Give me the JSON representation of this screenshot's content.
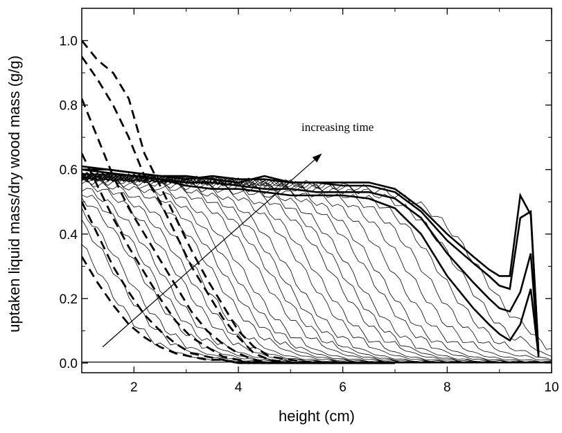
{
  "chart_data": {
    "type": "line",
    "title": "",
    "xlabel": "height (cm)",
    "ylabel": "uptaken liquid mass/dry wood mass (g/g)",
    "xlim": [
      1,
      10
    ],
    "ylim": [
      -0.03,
      1.1
    ],
    "xticks": [
      2,
      4,
      6,
      8,
      10
    ],
    "yticks": [
      0.0,
      0.2,
      0.4,
      0.6,
      0.8,
      1.0
    ],
    "xtick_labels": [
      "2",
      "4",
      "6",
      "8",
      "10"
    ],
    "ytick_labels": [
      "0.0",
      "0.2",
      "0.4",
      "0.6",
      "0.8",
      "1.0"
    ],
    "grid": false,
    "annotation": {
      "text": "increasing time",
      "text_pos": [
        5.9,
        0.72
      ],
      "arrow_from": [
        1.4,
        0.05
      ],
      "arrow_to": [
        5.6,
        0.65
      ]
    },
    "dashed_series": [
      {
        "x": [
          1.0,
          1.3,
          1.6,
          1.9,
          2.2,
          2.5,
          2.8,
          3.1,
          3.4,
          3.7,
          4.0,
          4.3,
          4.6,
          5.0,
          5.5,
          6.0,
          6.5,
          7.0
        ],
        "y": [
          0.33,
          0.25,
          0.18,
          0.12,
          0.08,
          0.05,
          0.03,
          0.02,
          0.01,
          0.01,
          0.0,
          0.0,
          0.0,
          0.0,
          0.0,
          0.0,
          0.0,
          0.0
        ]
      },
      {
        "x": [
          1.0,
          1.3,
          1.6,
          1.9,
          2.2,
          2.5,
          2.8,
          3.1,
          3.4,
          3.7,
          4.0,
          4.3,
          4.6,
          5.0,
          5.5,
          6.0,
          6.5,
          7.0
        ],
        "y": [
          0.5,
          0.4,
          0.3,
          0.22,
          0.15,
          0.1,
          0.06,
          0.03,
          0.02,
          0.01,
          0.0,
          0.0,
          0.0,
          0.0,
          0.0,
          0.0,
          0.0,
          0.0
        ]
      },
      {
        "x": [
          1.0,
          1.3,
          1.6,
          1.9,
          2.2,
          2.5,
          2.8,
          3.1,
          3.4,
          3.7,
          4.0,
          4.3,
          4.6,
          5.0,
          5.5,
          6.0,
          6.5,
          7.0
        ],
        "y": [
          0.65,
          0.55,
          0.45,
          0.36,
          0.28,
          0.2,
          0.13,
          0.08,
          0.05,
          0.02,
          0.01,
          0.0,
          0.0,
          0.0,
          0.0,
          0.0,
          0.0,
          0.0
        ]
      },
      {
        "x": [
          1.0,
          1.3,
          1.6,
          1.9,
          2.2,
          2.5,
          2.8,
          3.1,
          3.4,
          3.7,
          4.0,
          4.3,
          4.6,
          5.0,
          5.5,
          6.0,
          6.5,
          7.0
        ],
        "y": [
          0.82,
          0.7,
          0.58,
          0.48,
          0.4,
          0.32,
          0.24,
          0.16,
          0.1,
          0.06,
          0.03,
          0.01,
          0.0,
          0.0,
          0.0,
          0.0,
          0.0,
          0.0
        ]
      },
      {
        "x": [
          1.0,
          1.3,
          1.6,
          1.9,
          2.2,
          2.5,
          2.8,
          3.1,
          3.4,
          3.7,
          4.0,
          4.3,
          4.6,
          5.0,
          5.5,
          6.0,
          6.5,
          7.0
        ],
        "y": [
          0.95,
          0.88,
          0.8,
          0.7,
          0.58,
          0.5,
          0.4,
          0.3,
          0.22,
          0.14,
          0.08,
          0.03,
          0.01,
          0.0,
          0.0,
          0.0,
          0.0,
          0.0
        ]
      },
      {
        "x": [
          1.0,
          1.3,
          1.6,
          1.9,
          2.2,
          2.5,
          2.8,
          3.1,
          3.4,
          3.7,
          4.0,
          4.3,
          4.6,
          5.0,
          5.5,
          6.0,
          6.5,
          7.0
        ],
        "y": [
          1.0,
          0.94,
          0.9,
          0.82,
          0.65,
          0.55,
          0.45,
          0.35,
          0.26,
          0.18,
          0.1,
          0.05,
          0.02,
          0.01,
          0.0,
          0.0,
          0.0,
          0.0
        ]
      }
    ],
    "thin_series_front_h": [
      1.3,
      1.6,
      1.8,
      2.1,
      2.3,
      2.5,
      2.8,
      3.0,
      3.2,
      3.5,
      3.7,
      3.9,
      4.1,
      4.4,
      4.6,
      4.8,
      5.0,
      5.3,
      5.5,
      5.8,
      6.0,
      6.2,
      6.5,
      6.7,
      7.0,
      7.3,
      7.6,
      7.9,
      8.3,
      8.7
    ],
    "thick_series": [
      {
        "x": [
          1.0,
          1.5,
          2.0,
          2.5,
          3.0,
          3.5,
          4.0,
          4.5,
          5.0,
          5.5,
          6.0,
          6.5,
          7.0,
          7.5,
          8.0,
          8.5,
          8.8,
          9.0,
          9.2,
          9.4,
          9.6,
          9.75
        ],
        "y": [
          0.6,
          0.59,
          0.58,
          0.57,
          0.55,
          0.54,
          0.54,
          0.53,
          0.52,
          0.52,
          0.52,
          0.51,
          0.48,
          0.4,
          0.27,
          0.17,
          0.12,
          0.09,
          0.07,
          0.12,
          0.23,
          0.02
        ]
      },
      {
        "x": [
          1.0,
          1.5,
          2.0,
          2.5,
          3.0,
          3.5,
          4.0,
          4.5,
          5.0,
          5.5,
          6.0,
          6.5,
          7.0,
          7.5,
          8.0,
          8.5,
          8.8,
          9.0,
          9.2,
          9.4,
          9.6,
          9.75
        ],
        "y": [
          0.6,
          0.59,
          0.58,
          0.57,
          0.56,
          0.56,
          0.55,
          0.54,
          0.54,
          0.53,
          0.53,
          0.53,
          0.51,
          0.45,
          0.34,
          0.25,
          0.2,
          0.17,
          0.16,
          0.22,
          0.34,
          0.02
        ]
      },
      {
        "x": [
          1.0,
          1.5,
          2.0,
          2.5,
          3.0,
          3.5,
          4.0,
          4.5,
          5.0,
          5.5,
          6.0,
          6.5,
          7.0,
          7.5,
          8.0,
          8.5,
          8.8,
          9.0,
          9.2,
          9.4,
          9.6,
          9.75
        ],
        "y": [
          0.6,
          0.6,
          0.59,
          0.58,
          0.58,
          0.57,
          0.56,
          0.58,
          0.56,
          0.56,
          0.55,
          0.55,
          0.53,
          0.47,
          0.38,
          0.31,
          0.27,
          0.24,
          0.23,
          0.45,
          0.47,
          0.03
        ]
      },
      {
        "x": [
          1.0,
          1.5,
          2.0,
          2.5,
          3.0,
          3.5,
          4.0,
          4.5,
          5.0,
          5.5,
          6.0,
          6.5,
          7.0,
          7.5,
          8.0,
          8.5,
          8.8,
          9.0,
          9.2,
          9.4,
          9.6,
          9.75
        ],
        "y": [
          0.61,
          0.6,
          0.59,
          0.58,
          0.57,
          0.58,
          0.57,
          0.57,
          0.56,
          0.56,
          0.56,
          0.56,
          0.54,
          0.48,
          0.4,
          0.33,
          0.29,
          0.27,
          0.27,
          0.52,
          0.46,
          0.03
        ]
      }
    ]
  }
}
